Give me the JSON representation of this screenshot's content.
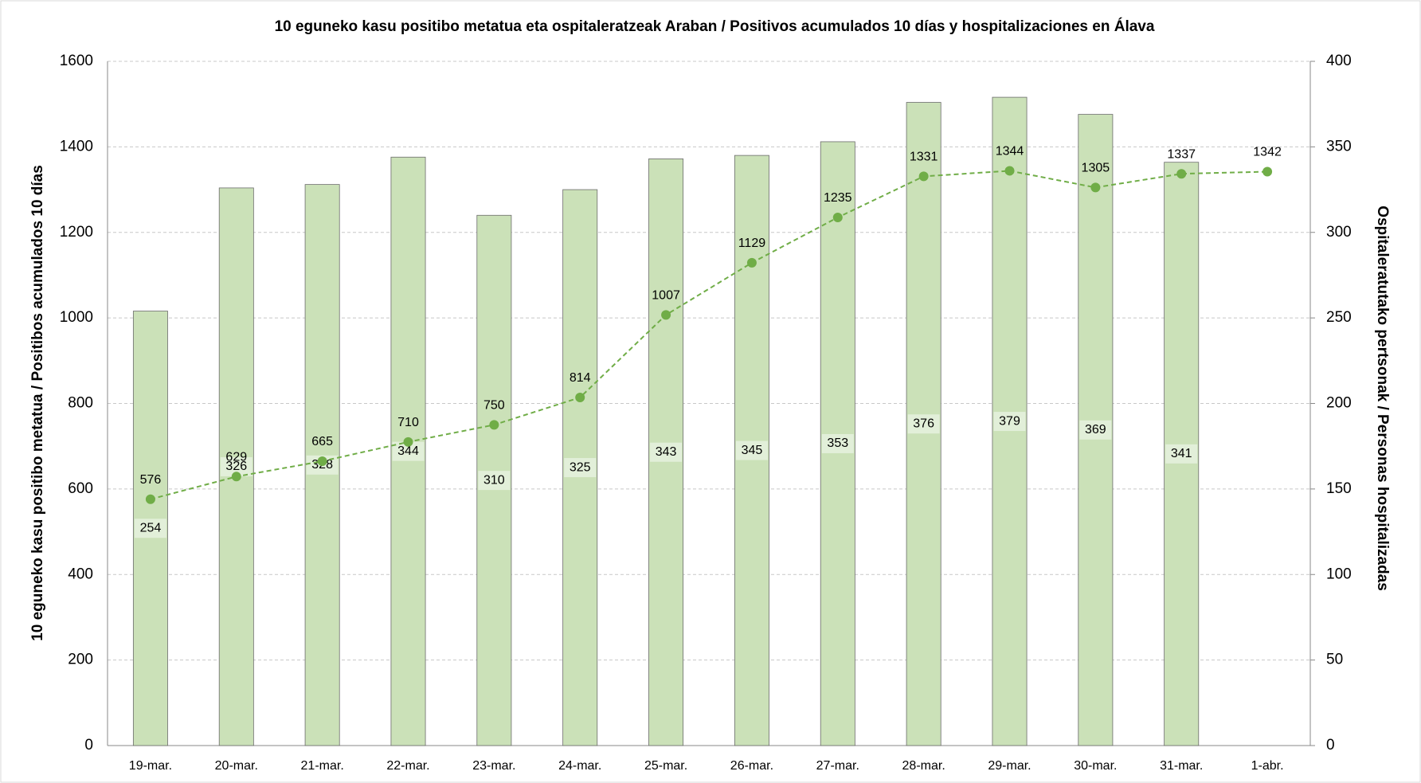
{
  "chart_data": {
    "type": "bar-line",
    "title": "10 eguneko kasu positibo metatua eta ospitaleratzeak Araban  / Positivos acumulados 10 días y hospitalizaciones en Álava",
    "y_label": "10 eguneko kasu positibo metatua  / Positibos acumulados 10 días",
    "y2_label": "Ospitaleratutako pertsonak  / Personas hospitalizadas",
    "categories": [
      "19-mar.",
      "20-mar.",
      "21-mar.",
      "22-mar.",
      "23-mar.",
      "24-mar.",
      "25-mar.",
      "26-mar.",
      "27-mar.",
      "28-mar.",
      "29-mar.",
      "30-mar.",
      "31-mar.",
      "1-abr."
    ],
    "series": [
      {
        "type": "bar",
        "axis": "y2",
        "color": "#cbe1b8",
        "values": [
          254,
          326,
          328,
          344,
          310,
          325,
          343,
          345,
          353,
          376,
          379,
          369,
          341,
          null
        ]
      },
      {
        "type": "line",
        "axis": "y",
        "color": "#70ad47",
        "values": [
          576,
          629,
          665,
          710,
          750,
          814,
          1007,
          1129,
          1235,
          1331,
          1344,
          1305,
          1337,
          1342
        ]
      }
    ],
    "ylim": [
      0,
      1600
    ],
    "yticks": [
      0,
      200,
      400,
      600,
      800,
      1000,
      1200,
      1400,
      1600
    ],
    "y2lim": [
      0,
      400
    ],
    "y2ticks": [
      0,
      50,
      100,
      150,
      200,
      250,
      300,
      350,
      400
    ],
    "grid": true
  }
}
